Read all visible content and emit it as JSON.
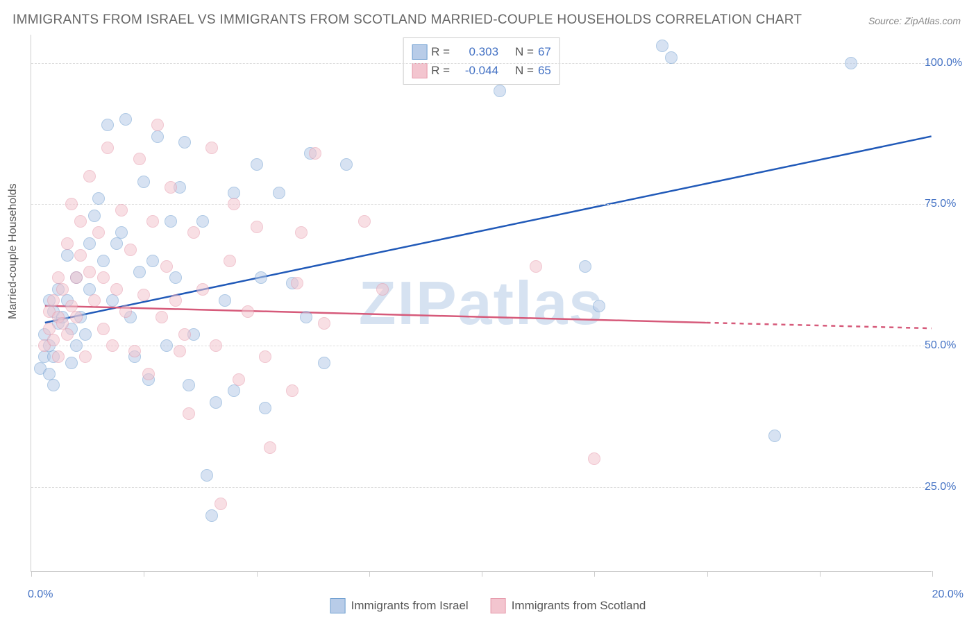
{
  "title": "IMMIGRANTS FROM ISRAEL VS IMMIGRANTS FROM SCOTLAND MARRIED-COUPLE HOUSEHOLDS CORRELATION CHART",
  "source": "Source: ZipAtlas.com",
  "watermark": "ZIPatlas",
  "ylabel": "Married-couple Households",
  "chart": {
    "type": "scatter",
    "background_color": "#ffffff",
    "grid_color": "#dddddd",
    "border_color": "#cccccc",
    "xlim": [
      0,
      20
    ],
    "ylim": [
      10,
      105
    ],
    "xtick_positions": [
      0,
      2.5,
      5,
      7.5,
      10,
      12.5,
      15,
      17.5,
      20
    ],
    "xtick_labels": {
      "0": "0.0%",
      "20": "20.0%"
    },
    "ytick_positions": [
      25,
      50,
      75,
      100
    ],
    "ytick_labels": {
      "25": "25.0%",
      "50": "50.0%",
      "75": "75.0%",
      "100": "100.0%"
    },
    "label_color": "#4472c4",
    "axis_text_color": "#555555",
    "marker_size": 18,
    "marker_opacity": 0.55,
    "line_width": 2.5
  },
  "series": [
    {
      "name_id": "israel",
      "label": "Immigrants from Israel",
      "fill": "#b8cce8",
      "stroke": "#6e9ed0",
      "line_color": "#2059b8",
      "R": "0.303",
      "N": "67",
      "trend": {
        "x1": 0.3,
        "y1": 54,
        "x2": 20,
        "y2": 87,
        "dash_from_x": 20
      },
      "points": [
        [
          0.2,
          46
        ],
        [
          0.3,
          48
        ],
        [
          0.4,
          45
        ],
        [
          0.3,
          52
        ],
        [
          0.4,
          50
        ],
        [
          0.5,
          56
        ],
        [
          0.4,
          58
        ],
        [
          0.6,
          54
        ],
        [
          0.5,
          48
        ],
        [
          0.7,
          55
        ],
        [
          0.6,
          60
        ],
        [
          0.8,
          58
        ],
        [
          0.9,
          53
        ],
        [
          1.0,
          62
        ],
        [
          0.8,
          66
        ],
        [
          1.1,
          55
        ],
        [
          1.3,
          60
        ],
        [
          1.2,
          52
        ],
        [
          1.5,
          76
        ],
        [
          1.6,
          65
        ],
        [
          1.7,
          89
        ],
        [
          1.4,
          73
        ],
        [
          1.8,
          58
        ],
        [
          2.0,
          70
        ],
        [
          2.1,
          90
        ],
        [
          2.2,
          55
        ],
        [
          2.4,
          63
        ],
        [
          2.5,
          79
        ],
        [
          2.6,
          44
        ],
        [
          2.7,
          65
        ],
        [
          2.8,
          87
        ],
        [
          3.0,
          50
        ],
        [
          3.1,
          72
        ],
        [
          3.2,
          62
        ],
        [
          3.3,
          78
        ],
        [
          3.5,
          43
        ],
        [
          3.6,
          52
        ],
        [
          3.8,
          72
        ],
        [
          3.9,
          27
        ],
        [
          4.0,
          20
        ],
        [
          4.1,
          40
        ],
        [
          4.3,
          58
        ],
        [
          4.5,
          77
        ],
        [
          4.5,
          42
        ],
        [
          5.0,
          82
        ],
        [
          5.1,
          62
        ],
        [
          5.2,
          39
        ],
        [
          5.5,
          77
        ],
        [
          5.8,
          61
        ],
        [
          6.1,
          55
        ],
        [
          6.2,
          84
        ],
        [
          6.5,
          47
        ],
        [
          7.0,
          82
        ],
        [
          10.4,
          95
        ],
        [
          12.3,
          64
        ],
        [
          12.6,
          57
        ],
        [
          14.0,
          103
        ],
        [
          14.2,
          101
        ],
        [
          16.5,
          34
        ],
        [
          18.2,
          100
        ],
        [
          0.5,
          43
        ],
        [
          0.9,
          47
        ],
        [
          1.0,
          50
        ],
        [
          1.3,
          68
        ],
        [
          1.9,
          68
        ],
        [
          2.3,
          48
        ],
        [
          3.4,
          86
        ]
      ]
    },
    {
      "name_id": "scotland",
      "label": "Immigrants from Scotland",
      "fill": "#f3c5cf",
      "stroke": "#e699ab",
      "line_color": "#d65a7a",
      "R": "-0.044",
      "N": "65",
      "trend": {
        "x1": 0.3,
        "y1": 57,
        "x2": 15,
        "y2": 54,
        "dash_from_x": 15,
        "dash_to_x": 20,
        "dash_to_y": 53
      },
      "points": [
        [
          0.3,
          50
        ],
        [
          0.4,
          56
        ],
        [
          0.4,
          53
        ],
        [
          0.5,
          58
        ],
        [
          0.5,
          51
        ],
        [
          0.6,
          55
        ],
        [
          0.6,
          48
        ],
        [
          0.7,
          60
        ],
        [
          0.7,
          54
        ],
        [
          0.8,
          52
        ],
        [
          0.9,
          75
        ],
        [
          0.9,
          57
        ],
        [
          1.0,
          62
        ],
        [
          1.0,
          55
        ],
        [
          1.1,
          72
        ],
        [
          1.2,
          48
        ],
        [
          1.3,
          63
        ],
        [
          1.3,
          80
        ],
        [
          1.4,
          58
        ],
        [
          1.5,
          70
        ],
        [
          1.6,
          53
        ],
        [
          1.7,
          85
        ],
        [
          1.8,
          50
        ],
        [
          1.9,
          60
        ],
        [
          2.0,
          74
        ],
        [
          2.1,
          56
        ],
        [
          2.2,
          67
        ],
        [
          2.3,
          49
        ],
        [
          2.4,
          83
        ],
        [
          2.5,
          59
        ],
        [
          2.7,
          72
        ],
        [
          2.8,
          89
        ],
        [
          2.9,
          55
        ],
        [
          3.0,
          64
        ],
        [
          3.1,
          78
        ],
        [
          3.3,
          49
        ],
        [
          3.4,
          52
        ],
        [
          3.5,
          38
        ],
        [
          3.6,
          70
        ],
        [
          3.8,
          60
        ],
        [
          4.0,
          85
        ],
        [
          4.1,
          50
        ],
        [
          4.2,
          22
        ],
        [
          4.4,
          65
        ],
        [
          4.5,
          75
        ],
        [
          4.8,
          56
        ],
        [
          5.0,
          71
        ],
        [
          5.2,
          48
        ],
        [
          5.3,
          32
        ],
        [
          5.8,
          42
        ],
        [
          5.9,
          61
        ],
        [
          6.0,
          70
        ],
        [
          6.3,
          84
        ],
        [
          6.5,
          54
        ],
        [
          7.4,
          72
        ],
        [
          7.8,
          60
        ],
        [
          11.2,
          64
        ],
        [
          12.5,
          30
        ],
        [
          0.6,
          62
        ],
        [
          0.8,
          68
        ],
        [
          1.1,
          66
        ],
        [
          1.6,
          62
        ],
        [
          2.6,
          45
        ],
        [
          3.2,
          58
        ],
        [
          4.6,
          44
        ]
      ]
    }
  ],
  "legend_top": {
    "R_label": "R =",
    "N_label": "N ="
  }
}
